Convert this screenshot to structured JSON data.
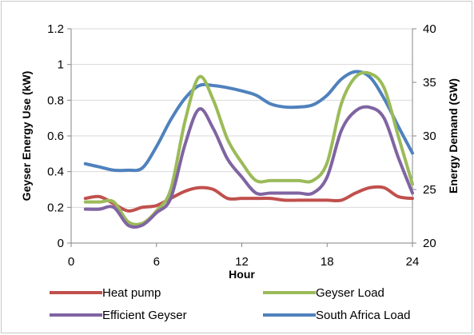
{
  "chart_data": {
    "type": "line",
    "title": "",
    "xlabel": "Hour",
    "ylabel_left": "Geyser Energy Use (kW)",
    "ylabel_right": "Energy Demand (GW)",
    "xlim": [
      0,
      24
    ],
    "ylim_left": [
      0,
      1.2
    ],
    "ylim_right": [
      20,
      40
    ],
    "x_ticks": [
      0,
      6,
      12,
      18,
      24
    ],
    "y_left_ticks": [
      0,
      0.2,
      0.4,
      0.6,
      0.8,
      1,
      1.2
    ],
    "y_left_tick_labels": [
      "0",
      "0.2",
      "0.4",
      "0.6",
      "0.8",
      "1",
      "1.2"
    ],
    "y_right_ticks": [
      20,
      25,
      30,
      35,
      40
    ],
    "grid": "horizontal",
    "legend_position": "bottom",
    "series": [
      {
        "name": "Heat pump",
        "axis": "left",
        "color": "#c0504d",
        "x": [
          1,
          2,
          3,
          4,
          5,
          6,
          7,
          8,
          9,
          10,
          11,
          12,
          13,
          14,
          15,
          16,
          17,
          18,
          19,
          20,
          21,
          22,
          23,
          24
        ],
        "values": [
          0.25,
          0.26,
          0.22,
          0.18,
          0.2,
          0.21,
          0.25,
          0.29,
          0.31,
          0.3,
          0.25,
          0.25,
          0.25,
          0.25,
          0.24,
          0.24,
          0.24,
          0.24,
          0.24,
          0.28,
          0.31,
          0.31,
          0.26,
          0.25
        ]
      },
      {
        "name": "Geyser Load",
        "axis": "left",
        "color": "#9bbb59",
        "x": [
          1,
          2,
          3,
          4,
          5,
          6,
          7,
          8,
          9,
          10,
          11,
          12,
          13,
          14,
          15,
          16,
          17,
          18,
          19,
          20,
          21,
          22,
          23,
          24
        ],
        "values": [
          0.23,
          0.23,
          0.23,
          0.12,
          0.11,
          0.18,
          0.3,
          0.68,
          0.93,
          0.8,
          0.58,
          0.45,
          0.35,
          0.35,
          0.35,
          0.35,
          0.35,
          0.45,
          0.78,
          0.93,
          0.95,
          0.87,
          0.6,
          0.33
        ]
      },
      {
        "name": "Efficient Geyser",
        "axis": "left",
        "color": "#8064a2",
        "x": [
          1,
          2,
          3,
          4,
          5,
          6,
          7,
          8,
          9,
          10,
          11,
          12,
          13,
          14,
          15,
          16,
          17,
          18,
          19,
          20,
          21,
          22,
          23,
          24
        ],
        "values": [
          0.19,
          0.19,
          0.2,
          0.1,
          0.1,
          0.17,
          0.25,
          0.55,
          0.75,
          0.64,
          0.47,
          0.37,
          0.28,
          0.28,
          0.28,
          0.28,
          0.28,
          0.37,
          0.63,
          0.74,
          0.76,
          0.7,
          0.48,
          0.28
        ]
      },
      {
        "name": "South Africa Load",
        "axis": "right",
        "color": "#4f81bd",
        "x": [
          1,
          2,
          3,
          4,
          5,
          6,
          7,
          8,
          9,
          10,
          11,
          12,
          13,
          14,
          15,
          16,
          17,
          18,
          19,
          20,
          21,
          22,
          23,
          24
        ],
        "values": [
          27.4,
          27.1,
          26.8,
          26.8,
          27.0,
          29.0,
          31.5,
          33.5,
          34.7,
          34.7,
          34.5,
          34.2,
          33.8,
          33.0,
          32.7,
          32.7,
          32.9,
          33.8,
          35.3,
          36.0,
          35.5,
          33.5,
          30.9,
          28.4
        ]
      }
    ]
  }
}
